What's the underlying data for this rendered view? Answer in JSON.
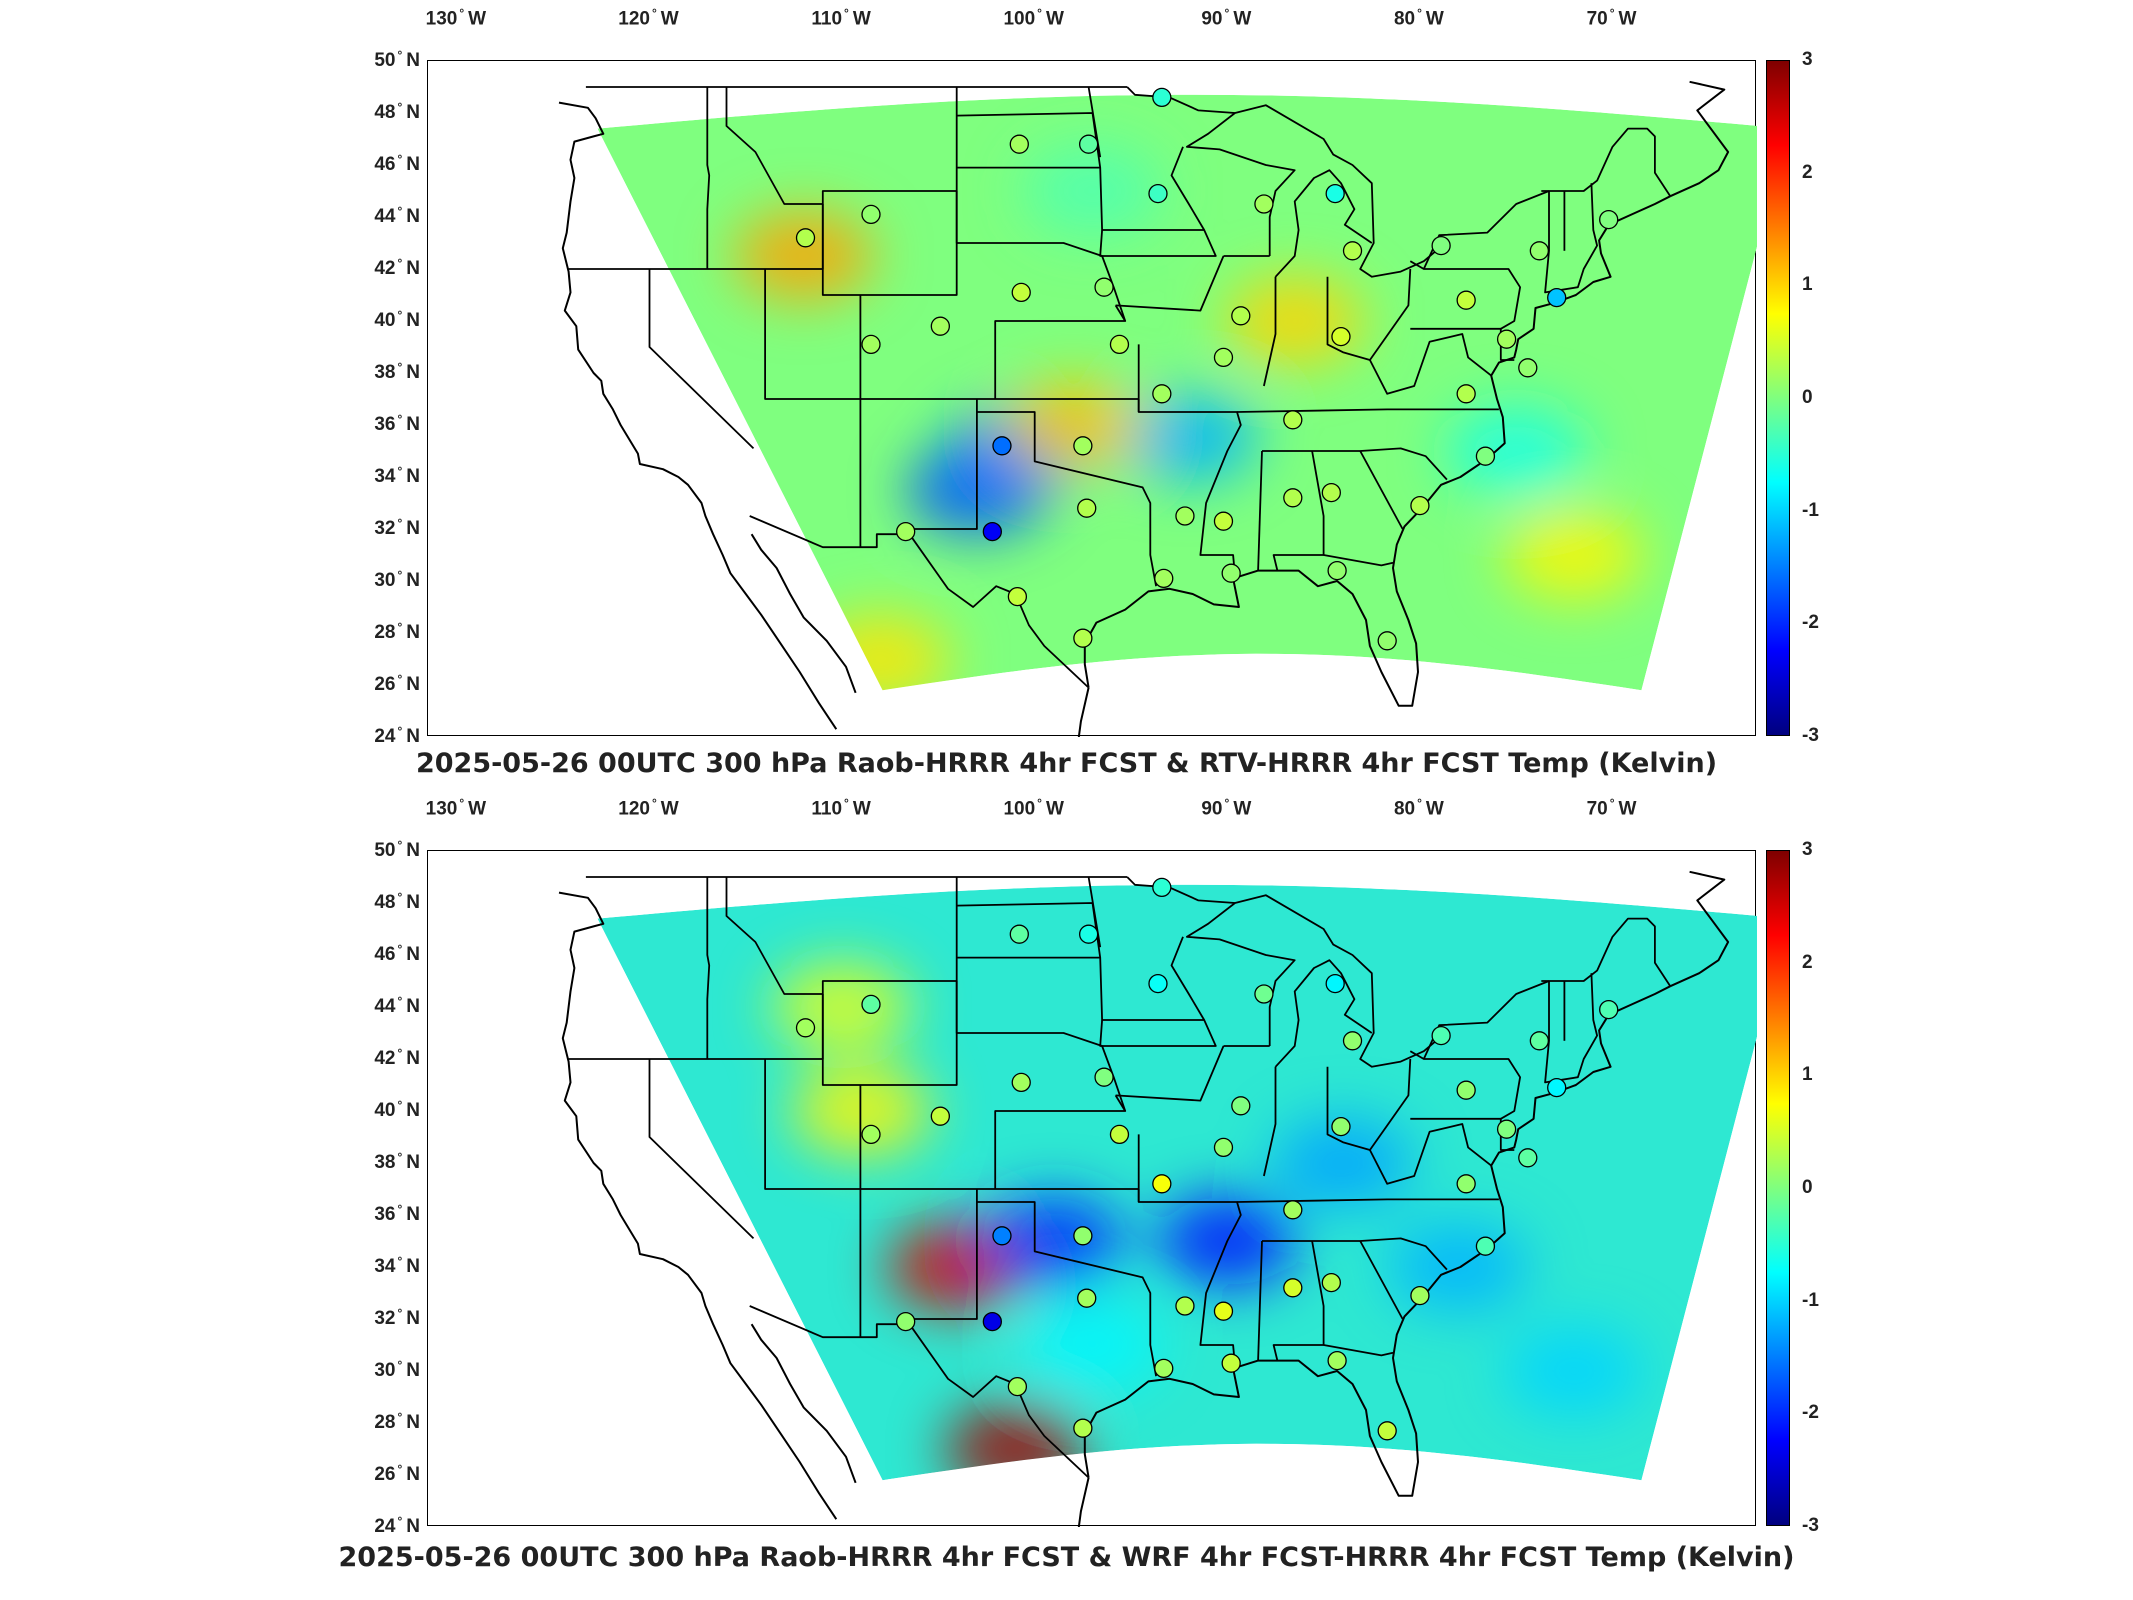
{
  "lon_ticks": [
    "130",
    "120",
    "110",
    "100",
    "90",
    "80",
    "70"
  ],
  "lon_hemi": "W",
  "lat_ticks": [
    "50",
    "48",
    "46",
    "44",
    "42",
    "40",
    "38",
    "36",
    "34",
    "32",
    "30",
    "28",
    "26",
    "24"
  ],
  "lat_hemi": "N",
  "colorbar": {
    "ticks": [
      "3",
      "2",
      "1",
      "0",
      "-1",
      "-2",
      "-3"
    ],
    "range": [
      -3,
      3
    ],
    "colormap": "jet",
    "colors": [
      "#00007f",
      "#0000ff",
      "#007fff",
      "#00ffff",
      "#7fff7f",
      "#ffff00",
      "#ff7f00",
      "#ff0000",
      "#7f0000"
    ]
  },
  "panels": [
    {
      "title": "2025-05-26 00UTC 300 hPa Raob-HRRR 4hr FCST & RTV-HRRR 4hr FCST Temp (Kelvin)",
      "field_base_color": "#7fff7f",
      "anomalies": [
        {
          "lon": -112,
          "lat": 42.5,
          "value": 1.3
        },
        {
          "lon": -86.5,
          "lat": 40,
          "value": 1.0
        },
        {
          "lon": -103,
          "lat": 33.5,
          "value": -1.8
        },
        {
          "lon": -101,
          "lat": 35,
          "value": -1.5
        },
        {
          "lon": -92,
          "lat": 35.5,
          "value": -1.2
        },
        {
          "lon": -98,
          "lat": 36,
          "value": 1.1
        },
        {
          "lon": -75,
          "lat": 35,
          "value": -0.6
        },
        {
          "lon": -97,
          "lat": 45,
          "value": -0.3
        },
        {
          "lon": -108,
          "lat": 27,
          "value": 0.9
        },
        {
          "lon": -72,
          "lat": 31,
          "value": 0.8
        }
      ],
      "stations": [
        {
          "lon": -111.9,
          "lat": 43.2,
          "value": 0.3
        },
        {
          "lon": -108.5,
          "lat": 44.1,
          "value": 0.1
        },
        {
          "lon": -97.2,
          "lat": 46.8,
          "value": -0.2
        },
        {
          "lon": -100.8,
          "lat": 46.8,
          "value": 0.2
        },
        {
          "lon": -93.6,
          "lat": 44.9,
          "value": -0.4
        },
        {
          "lon": -93.4,
          "lat": 48.6,
          "value": -0.5
        },
        {
          "lon": -88.1,
          "lat": 44.5,
          "value": 0.2
        },
        {
          "lon": -84.4,
          "lat": 44.9,
          "value": -0.6
        },
        {
          "lon": -83.5,
          "lat": 42.7,
          "value": 0.3
        },
        {
          "lon": -78.9,
          "lat": 42.9,
          "value": 0.0
        },
        {
          "lon": -73.8,
          "lat": 42.7,
          "value": 0.1
        },
        {
          "lon": -70.2,
          "lat": 43.9,
          "value": 0.0
        },
        {
          "lon": -72.9,
          "lat": 40.9,
          "value": -1.1
        },
        {
          "lon": -77.6,
          "lat": 40.8,
          "value": 0.4
        },
        {
          "lon": -75.5,
          "lat": 39.3,
          "value": 0.2
        },
        {
          "lon": -74.4,
          "lat": 38.2,
          "value": 0.1
        },
        {
          "lon": -77.6,
          "lat": 37.2,
          "value": 0.3
        },
        {
          "lon": -76.6,
          "lat": 34.8,
          "value": 0.0
        },
        {
          "lon": -80.0,
          "lat": 32.9,
          "value": 0.3
        },
        {
          "lon": -84.6,
          "lat": 33.4,
          "value": 0.3
        },
        {
          "lon": -86.6,
          "lat": 36.2,
          "value": 0.3
        },
        {
          "lon": -84.1,
          "lat": 39.4,
          "value": 0.5
        },
        {
          "lon": -89.3,
          "lat": 40.2,
          "value": 0.3
        },
        {
          "lon": -90.2,
          "lat": 38.6,
          "value": 0.2
        },
        {
          "lon": -93.4,
          "lat": 37.2,
          "value": 0.2
        },
        {
          "lon": -95.6,
          "lat": 39.1,
          "value": 0.3
        },
        {
          "lon": -96.4,
          "lat": 41.3,
          "value": 0.1
        },
        {
          "lon": -100.7,
          "lat": 41.1,
          "value": 0.4
        },
        {
          "lon": -104.9,
          "lat": 39.8,
          "value": 0.2
        },
        {
          "lon": -108.5,
          "lat": 39.1,
          "value": 0.2
        },
        {
          "lon": -101.7,
          "lat": 35.2,
          "value": -1.6
        },
        {
          "lon": -97.5,
          "lat": 35.2,
          "value": 0.2
        },
        {
          "lon": -102.2,
          "lat": 31.9,
          "value": -2.3
        },
        {
          "lon": -106.7,
          "lat": 31.9,
          "value": 0.2
        },
        {
          "lon": -97.3,
          "lat": 32.8,
          "value": 0.3
        },
        {
          "lon": -92.2,
          "lat": 32.5,
          "value": 0.2
        },
        {
          "lon": -90.2,
          "lat": 32.3,
          "value": 0.4
        },
        {
          "lon": -86.6,
          "lat": 33.2,
          "value": 0.3
        },
        {
          "lon": -93.3,
          "lat": 30.1,
          "value": 0.2
        },
        {
          "lon": -89.8,
          "lat": 30.3,
          "value": 0.1
        },
        {
          "lon": -84.3,
          "lat": 30.4,
          "value": 0.1
        },
        {
          "lon": -81.7,
          "lat": 27.7,
          "value": 0.1
        },
        {
          "lon": -100.9,
          "lat": 29.4,
          "value": 0.4
        },
        {
          "lon": -97.5,
          "lat": 27.8,
          "value": 0.3
        }
      ]
    },
    {
      "title": "2025-05-26 00UTC 300 hPa Raob-HRRR 4hr FCST & WRF 4hr FCST-HRRR 4hr FCST Temp (Kelvin)",
      "field_base_color": "#2ee8d2",
      "anomalies": [
        {
          "lon": -104,
          "lat": 34,
          "value": 2.5
        },
        {
          "lon": -101,
          "lat": 27,
          "value": 2.8
        },
        {
          "lon": -109,
          "lat": 40,
          "value": 0.8
        },
        {
          "lon": -110,
          "lat": 44,
          "value": 0.6
        },
        {
          "lon": -90,
          "lat": 35,
          "value": -2.2
        },
        {
          "lon": -99,
          "lat": 35,
          "value": -2.0
        },
        {
          "lon": -84,
          "lat": 38,
          "value": -1.3
        },
        {
          "lon": -78,
          "lat": 34,
          "value": -1.2
        },
        {
          "lon": -72,
          "lat": 30,
          "value": -1.0
        },
        {
          "lon": -97,
          "lat": 31,
          "value": -0.8
        }
      ],
      "stations": [
        {
          "lon": -111.9,
          "lat": 43.2,
          "value": 0.2
        },
        {
          "lon": -108.5,
          "lat": 44.1,
          "value": -0.2
        },
        {
          "lon": -97.2,
          "lat": 46.8,
          "value": -0.6
        },
        {
          "lon": -100.8,
          "lat": 46.8,
          "value": -0.2
        },
        {
          "lon": -93.6,
          "lat": 44.9,
          "value": -0.7
        },
        {
          "lon": -93.4,
          "lat": 48.6,
          "value": -0.5
        },
        {
          "lon": -88.1,
          "lat": 44.5,
          "value": -0.1
        },
        {
          "lon": -84.4,
          "lat": 44.9,
          "value": -0.8
        },
        {
          "lon": -83.5,
          "lat": 42.7,
          "value": 0.1
        },
        {
          "lon": -78.9,
          "lat": 42.9,
          "value": -0.3
        },
        {
          "lon": -73.8,
          "lat": 42.7,
          "value": -0.2
        },
        {
          "lon": -70.2,
          "lat": 43.9,
          "value": -0.3
        },
        {
          "lon": -72.9,
          "lat": 40.9,
          "value": -0.8
        },
        {
          "lon": -77.6,
          "lat": 40.8,
          "value": 0.1
        },
        {
          "lon": -75.5,
          "lat": 39.3,
          "value": 0.0
        },
        {
          "lon": -74.4,
          "lat": 38.2,
          "value": -0.2
        },
        {
          "lon": -77.6,
          "lat": 37.2,
          "value": 0.1
        },
        {
          "lon": -76.6,
          "lat": 34.8,
          "value": -0.3
        },
        {
          "lon": -80.0,
          "lat": 32.9,
          "value": 0.2
        },
        {
          "lon": -84.6,
          "lat": 33.4,
          "value": 0.3
        },
        {
          "lon": -86.6,
          "lat": 36.2,
          "value": 0.2
        },
        {
          "lon": -84.1,
          "lat": 39.4,
          "value": 0.1
        },
        {
          "lon": -89.3,
          "lat": 40.2,
          "value": 0.0
        },
        {
          "lon": -90.2,
          "lat": 38.6,
          "value": 0.1
        },
        {
          "lon": -93.4,
          "lat": 37.2,
          "value": 0.7
        },
        {
          "lon": -95.6,
          "lat": 39.1,
          "value": 0.4
        },
        {
          "lon": -96.4,
          "lat": 41.3,
          "value": 0.0
        },
        {
          "lon": -100.7,
          "lat": 41.1,
          "value": 0.2
        },
        {
          "lon": -104.9,
          "lat": 39.8,
          "value": 0.4
        },
        {
          "lon": -108.5,
          "lat": 39.1,
          "value": 0.2
        },
        {
          "lon": -101.7,
          "lat": 35.2,
          "value": -1.5
        },
        {
          "lon": -97.5,
          "lat": 35.2,
          "value": 0.1
        },
        {
          "lon": -102.2,
          "lat": 31.9,
          "value": -2.4
        },
        {
          "lon": -106.7,
          "lat": 31.9,
          "value": 0.1
        },
        {
          "lon": -97.3,
          "lat": 32.8,
          "value": 0.2
        },
        {
          "lon": -92.2,
          "lat": 32.5,
          "value": 0.3
        },
        {
          "lon": -90.2,
          "lat": 32.3,
          "value": 0.6
        },
        {
          "lon": -86.6,
          "lat": 33.2,
          "value": 0.5
        },
        {
          "lon": -93.3,
          "lat": 30.1,
          "value": 0.2
        },
        {
          "lon": -89.8,
          "lat": 30.3,
          "value": 0.4
        },
        {
          "lon": -84.3,
          "lat": 30.4,
          "value": 0.2
        },
        {
          "lon": -81.7,
          "lat": 27.7,
          "value": 0.4
        },
        {
          "lon": -100.9,
          "lat": 29.4,
          "value": 0.2
        },
        {
          "lon": -97.5,
          "lat": 27.8,
          "value": 0.3
        }
      ]
    }
  ]
}
